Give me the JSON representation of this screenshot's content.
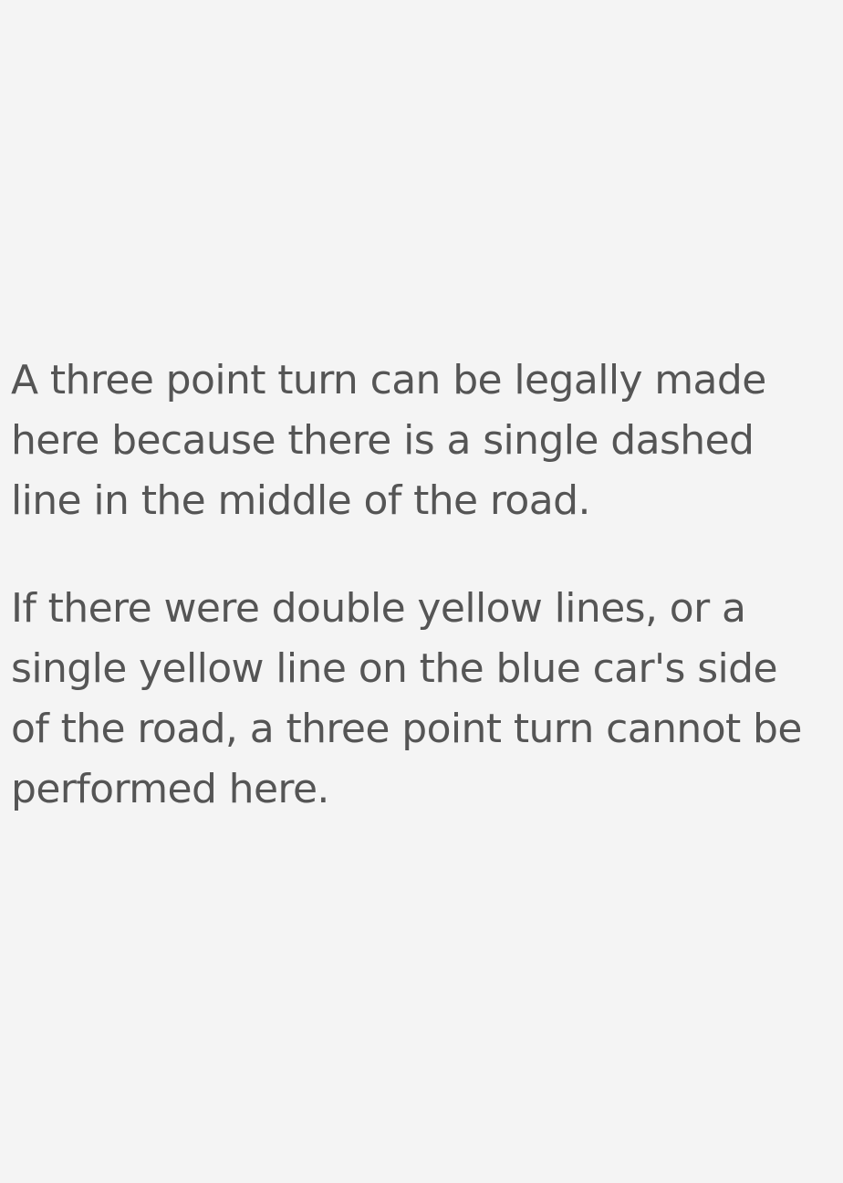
{
  "explanation": {
    "paragraph_1": "A three point turn can be legally made here because there is a single dashed line in the middle of the road.",
    "paragraph_2": "If there were double yellow lines, or a single yellow line on the blue car's side of the road, a three point turn cannot be performed here."
  },
  "colors": {
    "background": "#f4f4f4",
    "text": "#555555"
  }
}
